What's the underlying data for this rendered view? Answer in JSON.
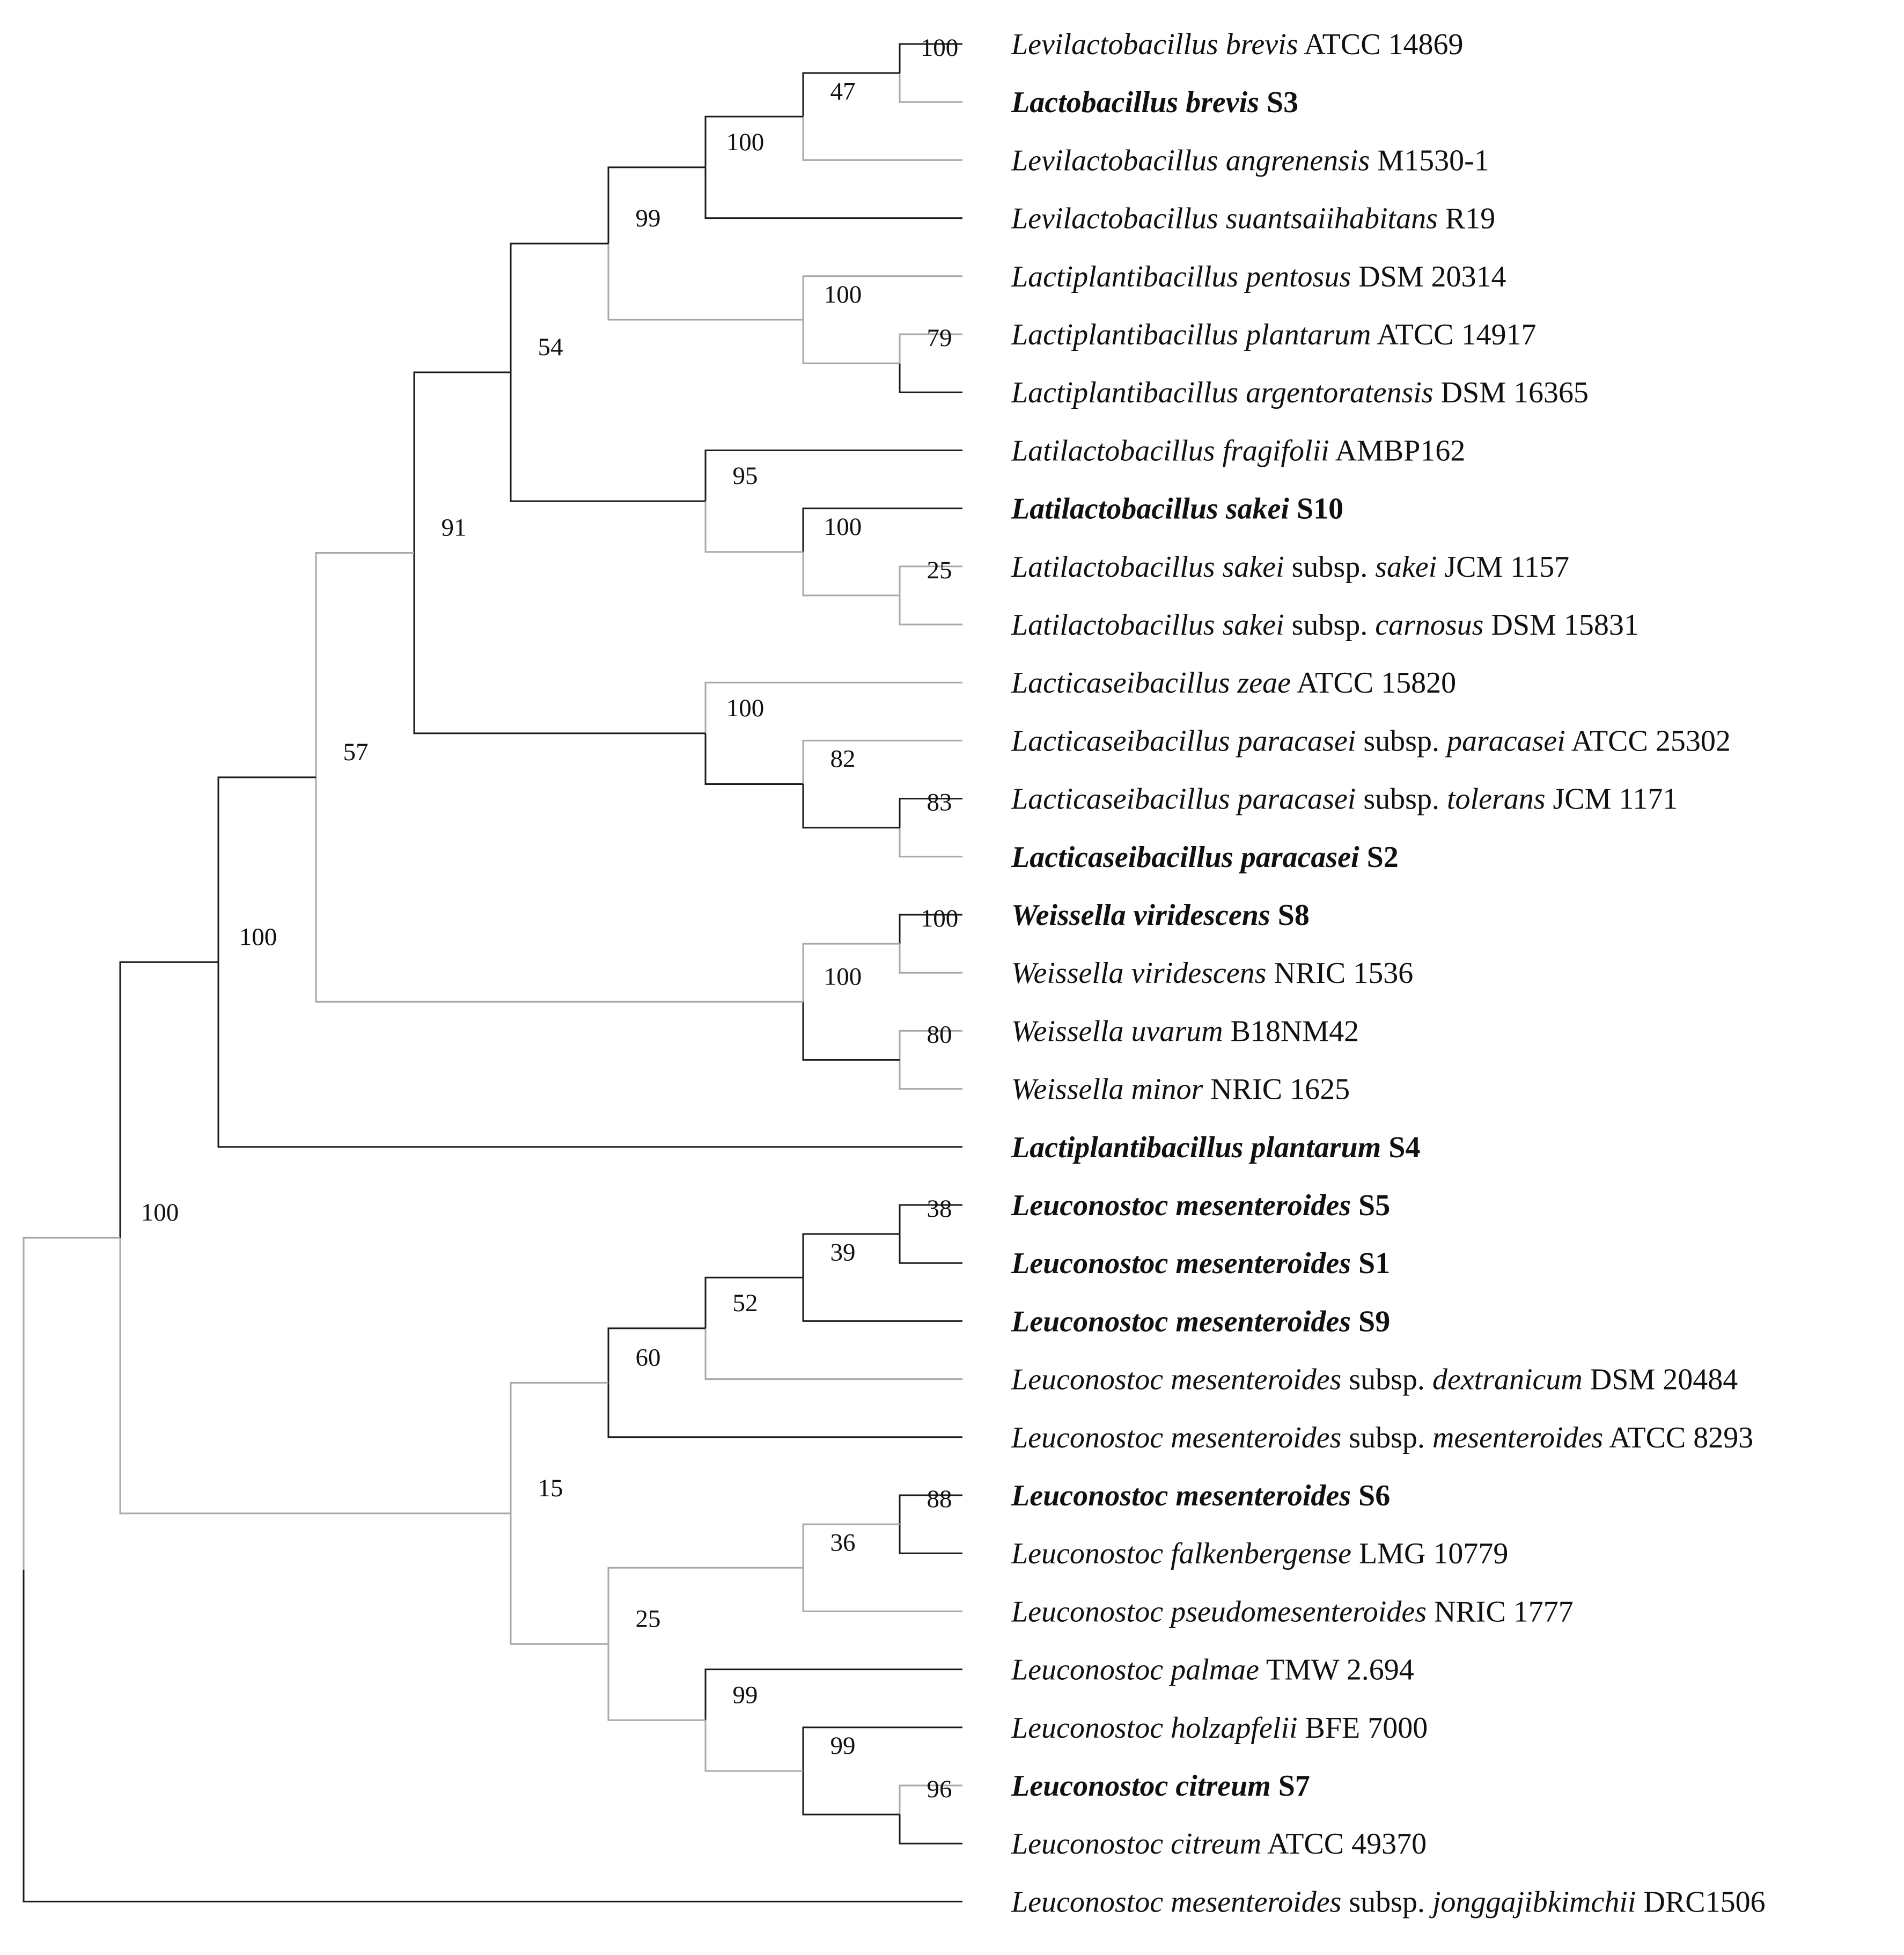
{
  "figure": {
    "kind": "phylogenetic-tree"
  },
  "colors": {
    "dark_branch": "#1a1a1a",
    "light_branch": "#a8a8a8",
    "text": "#111111"
  },
  "taxa": [
    {
      "parts": [
        {
          "t": "Levilactobacillus brevis",
          "i": true
        },
        {
          "t": " ATCC 14869",
          "i": false
        }
      ],
      "bold": false
    },
    {
      "parts": [
        {
          "t": "Lactobacillus brevis",
          "i": true
        },
        {
          "t": " S3",
          "i": false
        }
      ],
      "bold": true
    },
    {
      "parts": [
        {
          "t": "Levilactobacillus angrenensis",
          "i": true
        },
        {
          "t": " M1530-1",
          "i": false
        }
      ],
      "bold": false
    },
    {
      "parts": [
        {
          "t": "Levilactobacillus suantsaiihabitans",
          "i": true
        },
        {
          "t": " R19",
          "i": false
        }
      ],
      "bold": false
    },
    {
      "parts": [
        {
          "t": "Lactiplantibacillus pentosus",
          "i": true
        },
        {
          "t": " DSM 20314",
          "i": false
        }
      ],
      "bold": false
    },
    {
      "parts": [
        {
          "t": "Lactiplantibacillus plantarum",
          "i": true
        },
        {
          "t": " ATCC 14917",
          "i": false
        }
      ],
      "bold": false
    },
    {
      "parts": [
        {
          "t": "Lactiplantibacillus argentoratensis",
          "i": true
        },
        {
          "t": " DSM 16365",
          "i": false
        }
      ],
      "bold": false
    },
    {
      "parts": [
        {
          "t": "Latilactobacillus fragifolii",
          "i": true
        },
        {
          "t": " AMBP162",
          "i": false
        }
      ],
      "bold": false
    },
    {
      "parts": [
        {
          "t": "Latilactobacillus sakei",
          "i": true
        },
        {
          "t": " S10",
          "i": false
        }
      ],
      "bold": true
    },
    {
      "parts": [
        {
          "t": "Latilactobacillus sakei",
          "i": true
        },
        {
          "t": " subsp. ",
          "i": false
        },
        {
          "t": "sakei",
          "i": true
        },
        {
          "t": " JCM 1157",
          "i": false
        }
      ],
      "bold": false
    },
    {
      "parts": [
        {
          "t": "Latilactobacillus sakei",
          "i": true
        },
        {
          "t": " subsp. ",
          "i": false
        },
        {
          "t": "carnosus",
          "i": true
        },
        {
          "t": " DSM 15831",
          "i": false
        }
      ],
      "bold": false
    },
    {
      "parts": [
        {
          "t": "Lacticaseibacillus zeae",
          "i": true
        },
        {
          "t": " ATCC 15820",
          "i": false
        }
      ],
      "bold": false
    },
    {
      "parts": [
        {
          "t": "Lacticaseibacillus paracasei",
          "i": true
        },
        {
          "t": " subsp. ",
          "i": false
        },
        {
          "t": "paracasei",
          "i": true
        },
        {
          "t": " ATCC 25302",
          "i": false
        }
      ],
      "bold": false
    },
    {
      "parts": [
        {
          "t": "Lacticaseibacillus paracasei",
          "i": true
        },
        {
          "t": " subsp. ",
          "i": false
        },
        {
          "t": "tolerans",
          "i": true
        },
        {
          "t": " JCM 1171",
          "i": false
        }
      ],
      "bold": false
    },
    {
      "parts": [
        {
          "t": "Lacticaseibacillus paracasei",
          "i": true
        },
        {
          "t": " S2",
          "i": false
        }
      ],
      "bold": true
    },
    {
      "parts": [
        {
          "t": "Weissella viridescens",
          "i": true
        },
        {
          "t": " S8",
          "i": false
        }
      ],
      "bold": true
    },
    {
      "parts": [
        {
          "t": "Weissella viridescens",
          "i": true
        },
        {
          "t": " NRIC 1536",
          "i": false
        }
      ],
      "bold": false
    },
    {
      "parts": [
        {
          "t": "Weissella uvarum",
          "i": true
        },
        {
          "t": " B18NM42",
          "i": false
        }
      ],
      "bold": false
    },
    {
      "parts": [
        {
          "t": "Weissella minor",
          "i": true
        },
        {
          "t": " NRIC 1625",
          "i": false
        }
      ],
      "bold": false
    },
    {
      "parts": [
        {
          "t": "Lactiplantibacillus plantarum",
          "i": true
        },
        {
          "t": " S4",
          "i": false
        }
      ],
      "bold": true
    },
    {
      "parts": [
        {
          "t": "Leuconostoc mesenteroides",
          "i": true
        },
        {
          "t": " S5",
          "i": false
        }
      ],
      "bold": true
    },
    {
      "parts": [
        {
          "t": "Leuconostoc mesenteroides",
          "i": true
        },
        {
          "t": " S1",
          "i": false
        }
      ],
      "bold": true
    },
    {
      "parts": [
        {
          "t": "Leuconostoc mesenteroides",
          "i": true
        },
        {
          "t": " S9",
          "i": false
        }
      ],
      "bold": true
    },
    {
      "parts": [
        {
          "t": "Leuconostoc mesenteroides",
          "i": true
        },
        {
          "t": " subsp. ",
          "i": false
        },
        {
          "t": "dextranicum",
          "i": true
        },
        {
          "t": " DSM 20484",
          "i": false
        }
      ],
      "bold": false
    },
    {
      "parts": [
        {
          "t": "Leuconostoc mesenteroides",
          "i": true
        },
        {
          "t": " subsp. ",
          "i": false
        },
        {
          "t": "mesenteroides",
          "i": true
        },
        {
          "t": " ATCC 8293",
          "i": false
        }
      ],
      "bold": false
    },
    {
      "parts": [
        {
          "t": "Leuconostoc mesenteroides",
          "i": true
        },
        {
          "t": " S6",
          "i": false
        }
      ],
      "bold": true
    },
    {
      "parts": [
        {
          "t": "Leuconostoc falkenbergense",
          "i": true
        },
        {
          "t": " LMG 10779",
          "i": false
        }
      ],
      "bold": false
    },
    {
      "parts": [
        {
          "t": "Leuconostoc pseudomesenteroides",
          "i": true
        },
        {
          "t": " NRIC 1777",
          "i": false
        }
      ],
      "bold": false
    },
    {
      "parts": [
        {
          "t": "Leuconostoc palmae",
          "i": true
        },
        {
          "t": " TMW 2.694",
          "i": false
        }
      ],
      "bold": false
    },
    {
      "parts": [
        {
          "t": "Leuconostoc holzapfelii",
          "i": true
        },
        {
          "t": " BFE 7000",
          "i": false
        }
      ],
      "bold": false
    },
    {
      "parts": [
        {
          "t": "Leuconostoc citreum",
          "i": true
        },
        {
          "t": " S7",
          "i": false
        }
      ],
      "bold": true
    },
    {
      "parts": [
        {
          "t": "Leuconostoc citreum",
          "i": true
        },
        {
          "t": " ATCC 49370",
          "i": false
        }
      ],
      "bold": false
    },
    {
      "parts": [
        {
          "t": "Leuconostoc mesenteroides",
          "i": true
        },
        {
          "t": " subsp. ",
          "i": false
        },
        {
          "t": "jonggajibkimchii",
          "i": true
        },
        {
          "t": " DRC1506",
          "i": false
        }
      ],
      "bold": false
    }
  ],
  "nodes": [
    {
      "id": "n01",
      "level": 9,
      "children": [
        {
          "taxon": 0,
          "tone": "dark"
        },
        {
          "taxon": 1,
          "tone": "light"
        }
      ],
      "support": "100"
    },
    {
      "id": "n02",
      "level": 8,
      "children": [
        {
          "node": "n01",
          "tone": "dark"
        },
        {
          "taxon": 2,
          "tone": "light"
        }
      ],
      "support": "47"
    },
    {
      "id": "n03",
      "level": 7,
      "children": [
        {
          "node": "n02",
          "tone": "dark"
        },
        {
          "taxon": 3,
          "tone": "dark"
        }
      ],
      "support": "100"
    },
    {
      "id": "n04",
      "level": 9,
      "children": [
        {
          "taxon": 5,
          "tone": "light"
        },
        {
          "taxon": 6,
          "tone": "dark"
        }
      ],
      "support": "79"
    },
    {
      "id": "n05",
      "level": 8,
      "children": [
        {
          "taxon": 4,
          "tone": "light"
        },
        {
          "node": "n04",
          "tone": "light"
        }
      ],
      "support": "100"
    },
    {
      "id": "n06",
      "level": 6,
      "children": [
        {
          "node": "n03",
          "tone": "dark"
        },
        {
          "node": "n05",
          "tone": "light"
        }
      ],
      "support": "99"
    },
    {
      "id": "n07",
      "level": 9,
      "children": [
        {
          "taxon": 9,
          "tone": "light"
        },
        {
          "taxon": 10,
          "tone": "light"
        }
      ],
      "support": "25"
    },
    {
      "id": "n08",
      "level": 8,
      "children": [
        {
          "taxon": 8,
          "tone": "dark"
        },
        {
          "node": "n07",
          "tone": "light"
        }
      ],
      "support": "100"
    },
    {
      "id": "n09",
      "level": 7,
      "children": [
        {
          "taxon": 7,
          "tone": "dark"
        },
        {
          "node": "n08",
          "tone": "light"
        }
      ],
      "support": "95"
    },
    {
      "id": "n10",
      "level": 5,
      "children": [
        {
          "node": "n06",
          "tone": "dark"
        },
        {
          "node": "n09",
          "tone": "dark"
        }
      ],
      "support": "54"
    },
    {
      "id": "n11",
      "level": 9,
      "children": [
        {
          "taxon": 13,
          "tone": "dark"
        },
        {
          "taxon": 14,
          "tone": "light"
        }
      ],
      "support": "83"
    },
    {
      "id": "n12",
      "level": 8,
      "children": [
        {
          "taxon": 12,
          "tone": "light"
        },
        {
          "node": "n11",
          "tone": "dark"
        }
      ],
      "support": "82"
    },
    {
      "id": "n13",
      "level": 7,
      "children": [
        {
          "taxon": 11,
          "tone": "light"
        },
        {
          "node": "n12",
          "tone": "dark"
        }
      ],
      "support": "100"
    },
    {
      "id": "n14",
      "level": 4,
      "children": [
        {
          "node": "n10",
          "tone": "dark"
        },
        {
          "node": "n13",
          "tone": "dark"
        }
      ],
      "support": "91"
    },
    {
      "id": "n15",
      "level": 9,
      "children": [
        {
          "taxon": 15,
          "tone": "dark"
        },
        {
          "taxon": 16,
          "tone": "light"
        }
      ],
      "support": "100"
    },
    {
      "id": "n16",
      "level": 9,
      "children": [
        {
          "taxon": 17,
          "tone": "light"
        },
        {
          "taxon": 18,
          "tone": "light"
        }
      ],
      "support": "80"
    },
    {
      "id": "n17",
      "level": 8,
      "children": [
        {
          "node": "n15",
          "tone": "light"
        },
        {
          "node": "n16",
          "tone": "dark"
        }
      ],
      "support": "100"
    },
    {
      "id": "n18",
      "level": 3,
      "children": [
        {
          "node": "n14",
          "tone": "light"
        },
        {
          "node": "n17",
          "tone": "light"
        }
      ],
      "support": "57"
    },
    {
      "id": "n19",
      "level": 2,
      "children": [
        {
          "node": "n18",
          "tone": "dark"
        },
        {
          "taxon": 19,
          "tone": "dark"
        }
      ],
      "support": "100"
    },
    {
      "id": "n20",
      "level": 9,
      "children": [
        {
          "taxon": 20,
          "tone": "dark"
        },
        {
          "taxon": 21,
          "tone": "dark"
        }
      ],
      "support": "38"
    },
    {
      "id": "n21",
      "level": 8,
      "children": [
        {
          "node": "n20",
          "tone": "dark"
        },
        {
          "taxon": 22,
          "tone": "dark"
        }
      ],
      "support": "39"
    },
    {
      "id": "n22",
      "level": 7,
      "children": [
        {
          "node": "n21",
          "tone": "dark"
        },
        {
          "taxon": 23,
          "tone": "light"
        }
      ],
      "support": "52"
    },
    {
      "id": "n23",
      "level": 6,
      "children": [
        {
          "node": "n22",
          "tone": "dark"
        },
        {
          "taxon": 24,
          "tone": "dark"
        }
      ],
      "support": "60"
    },
    {
      "id": "n24",
      "level": 9,
      "children": [
        {
          "taxon": 25,
          "tone": "dark"
        },
        {
          "taxon": 26,
          "tone": "dark"
        }
      ],
      "support": "88"
    },
    {
      "id": "n25",
      "level": 8,
      "children": [
        {
          "node": "n24",
          "tone": "light"
        },
        {
          "taxon": 27,
          "tone": "light"
        }
      ],
      "support": "36"
    },
    {
      "id": "n26",
      "level": 9,
      "children": [
        {
          "taxon": 30,
          "tone": "light"
        },
        {
          "taxon": 31,
          "tone": "dark"
        }
      ],
      "support": "96"
    },
    {
      "id": "n27",
      "level": 8,
      "children": [
        {
          "taxon": 29,
          "tone": "dark"
        },
        {
          "node": "n26",
          "tone": "dark"
        }
      ],
      "support": "99"
    },
    {
      "id": "n28",
      "level": 7,
      "children": [
        {
          "taxon": 28,
          "tone": "dark"
        },
        {
          "node": "n27",
          "tone": "light"
        }
      ],
      "support": "99"
    },
    {
      "id": "n29",
      "level": 6,
      "children": [
        {
          "node": "n25",
          "tone": "light"
        },
        {
          "node": "n28",
          "tone": "light"
        }
      ],
      "support": "25"
    },
    {
      "id": "n30",
      "level": 5,
      "children": [
        {
          "node": "n23",
          "tone": "light"
        },
        {
          "node": "n29",
          "tone": "light"
        }
      ],
      "support": "15"
    },
    {
      "id": "n31",
      "level": 1,
      "children": [
        {
          "node": "n19",
          "tone": "dark"
        },
        {
          "node": "n30",
          "tone": "light"
        }
      ],
      "support": "100"
    },
    {
      "id": "n32",
      "level": 0,
      "children": [
        {
          "node": "n31",
          "tone": "light"
        },
        {
          "taxon": 32,
          "tone": "dark"
        }
      ],
      "support": ""
    }
  ]
}
